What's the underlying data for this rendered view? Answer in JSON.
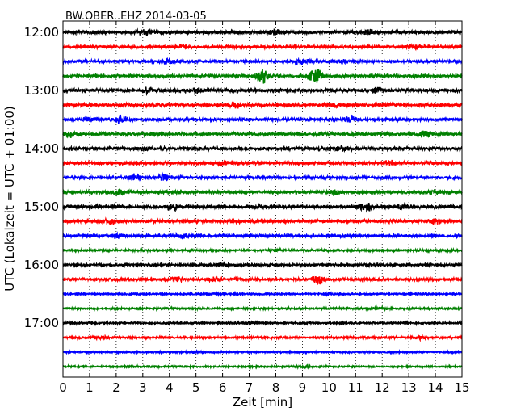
{
  "chart_data": {
    "type": "line",
    "title": "BW.OBER..EHZ 2014-03-05",
    "xlabel": "Zeit  [min]",
    "ylabel": "UTC (Lokalzeit = UTC + 01:00)",
    "xlim": [
      0,
      15
    ],
    "x_ticks": [
      "0",
      "1",
      "2",
      "3",
      "4",
      "5",
      "6",
      "7",
      "8",
      "9",
      "10",
      "11",
      "12",
      "13",
      "14",
      "15"
    ],
    "y_tick_labels": [
      "12:00",
      "13:00",
      "14:00",
      "15:00",
      "16:00",
      "17:00"
    ],
    "grid": "vertical-dotted",
    "colors": [
      "#000000",
      "#ff0000",
      "#0000ff",
      "#008000"
    ],
    "traces": [
      {
        "start": "12:00",
        "amp": 0.18,
        "events": [
          {
            "t": 3.0,
            "a": 0.25
          },
          {
            "t": 8.0,
            "a": 0.22
          },
          {
            "t": 11.5,
            "a": 0.2
          }
        ]
      },
      {
        "start": "12:15",
        "amp": 0.15,
        "events": [
          {
            "t": 4.5,
            "a": 0.2
          },
          {
            "t": 13.2,
            "a": 0.2
          }
        ]
      },
      {
        "start": "12:30",
        "amp": 0.14,
        "events": [
          {
            "t": 4.0,
            "a": 0.22
          },
          {
            "t": 9.0,
            "a": 0.45
          },
          {
            "t": 10.5,
            "a": 0.18
          }
        ]
      },
      {
        "start": "12:45",
        "amp": 0.15,
        "events": [
          {
            "t": 7.5,
            "a": 0.7
          },
          {
            "t": 9.5,
            "a": 1.1
          }
        ]
      },
      {
        "start": "13:00",
        "amp": 0.18,
        "events": [
          {
            "t": 3.2,
            "a": 0.25
          },
          {
            "t": 5.0,
            "a": 0.25
          },
          {
            "t": 11.8,
            "a": 0.22
          }
        ]
      },
      {
        "start": "13:15",
        "amp": 0.16,
        "events": [
          {
            "t": 6.5,
            "a": 0.22
          },
          {
            "t": 10.2,
            "a": 0.2
          }
        ]
      },
      {
        "start": "13:30",
        "amp": 0.15,
        "events": [
          {
            "t": 1.0,
            "a": 0.28
          },
          {
            "t": 2.2,
            "a": 0.35
          },
          {
            "t": 10.8,
            "a": 0.22
          }
        ]
      },
      {
        "start": "13:45",
        "amp": 0.15,
        "events": [
          {
            "t": 0.3,
            "a": 0.28
          },
          {
            "t": 13.6,
            "a": 0.3
          }
        ]
      },
      {
        "start": "14:00",
        "amp": 0.17,
        "events": [
          {
            "t": 10.5,
            "a": 0.22
          },
          {
            "t": 3.0,
            "a": 0.2
          }
        ]
      },
      {
        "start": "14:15",
        "amp": 0.16,
        "events": [
          {
            "t": 6.0,
            "a": 0.2
          },
          {
            "t": 12.3,
            "a": 0.22
          }
        ]
      },
      {
        "start": "14:30",
        "amp": 0.15,
        "events": [
          {
            "t": 2.7,
            "a": 0.28
          },
          {
            "t": 3.8,
            "a": 0.3
          }
        ]
      },
      {
        "start": "14:45",
        "amp": 0.15,
        "events": [
          {
            "t": 2.1,
            "a": 0.22
          },
          {
            "t": 10.2,
            "a": 0.3
          },
          {
            "t": 14.0,
            "a": 0.2
          }
        ]
      },
      {
        "start": "15:00",
        "amp": 0.18,
        "events": [
          {
            "t": 4.1,
            "a": 0.28
          },
          {
            "t": 11.4,
            "a": 0.42
          },
          {
            "t": 12.8,
            "a": 0.22
          }
        ]
      },
      {
        "start": "15:15",
        "amp": 0.16,
        "events": [
          {
            "t": 1.8,
            "a": 0.25
          },
          {
            "t": 14.0,
            "a": 0.3
          }
        ]
      },
      {
        "start": "15:30",
        "amp": 0.15,
        "events": [
          {
            "t": 2.0,
            "a": 0.22
          },
          {
            "t": 4.5,
            "a": 0.2
          }
        ]
      },
      {
        "start": "15:45",
        "amp": 0.1,
        "events": [
          {
            "t": 8.0,
            "a": 0.12
          }
        ]
      },
      {
        "start": "16:00",
        "amp": 0.12,
        "events": [
          {
            "t": 6.0,
            "a": 0.14
          }
        ]
      },
      {
        "start": "16:15",
        "amp": 0.14,
        "events": [
          {
            "t": 4.2,
            "a": 0.28
          },
          {
            "t": 5.7,
            "a": 0.22
          },
          {
            "t": 9.6,
            "a": 0.45
          }
        ]
      },
      {
        "start": "16:30",
        "amp": 0.09,
        "events": [
          {
            "t": 10.0,
            "a": 0.1
          }
        ]
      },
      {
        "start": "16:45",
        "amp": 0.09,
        "events": [
          {
            "t": 12.0,
            "a": 0.1
          }
        ]
      },
      {
        "start": "17:00",
        "amp": 0.1,
        "events": [
          {
            "t": 7.0,
            "a": 0.1
          }
        ]
      },
      {
        "start": "17:15",
        "amp": 0.1,
        "events": [
          {
            "t": 1.4,
            "a": 0.14
          },
          {
            "t": 13.4,
            "a": 0.14
          }
        ]
      },
      {
        "start": "17:30",
        "amp": 0.08,
        "events": [
          {
            "t": 5.0,
            "a": 0.08
          }
        ]
      },
      {
        "start": "17:45",
        "amp": 0.08,
        "events": [
          {
            "t": 9.0,
            "a": 0.08
          }
        ]
      }
    ]
  }
}
